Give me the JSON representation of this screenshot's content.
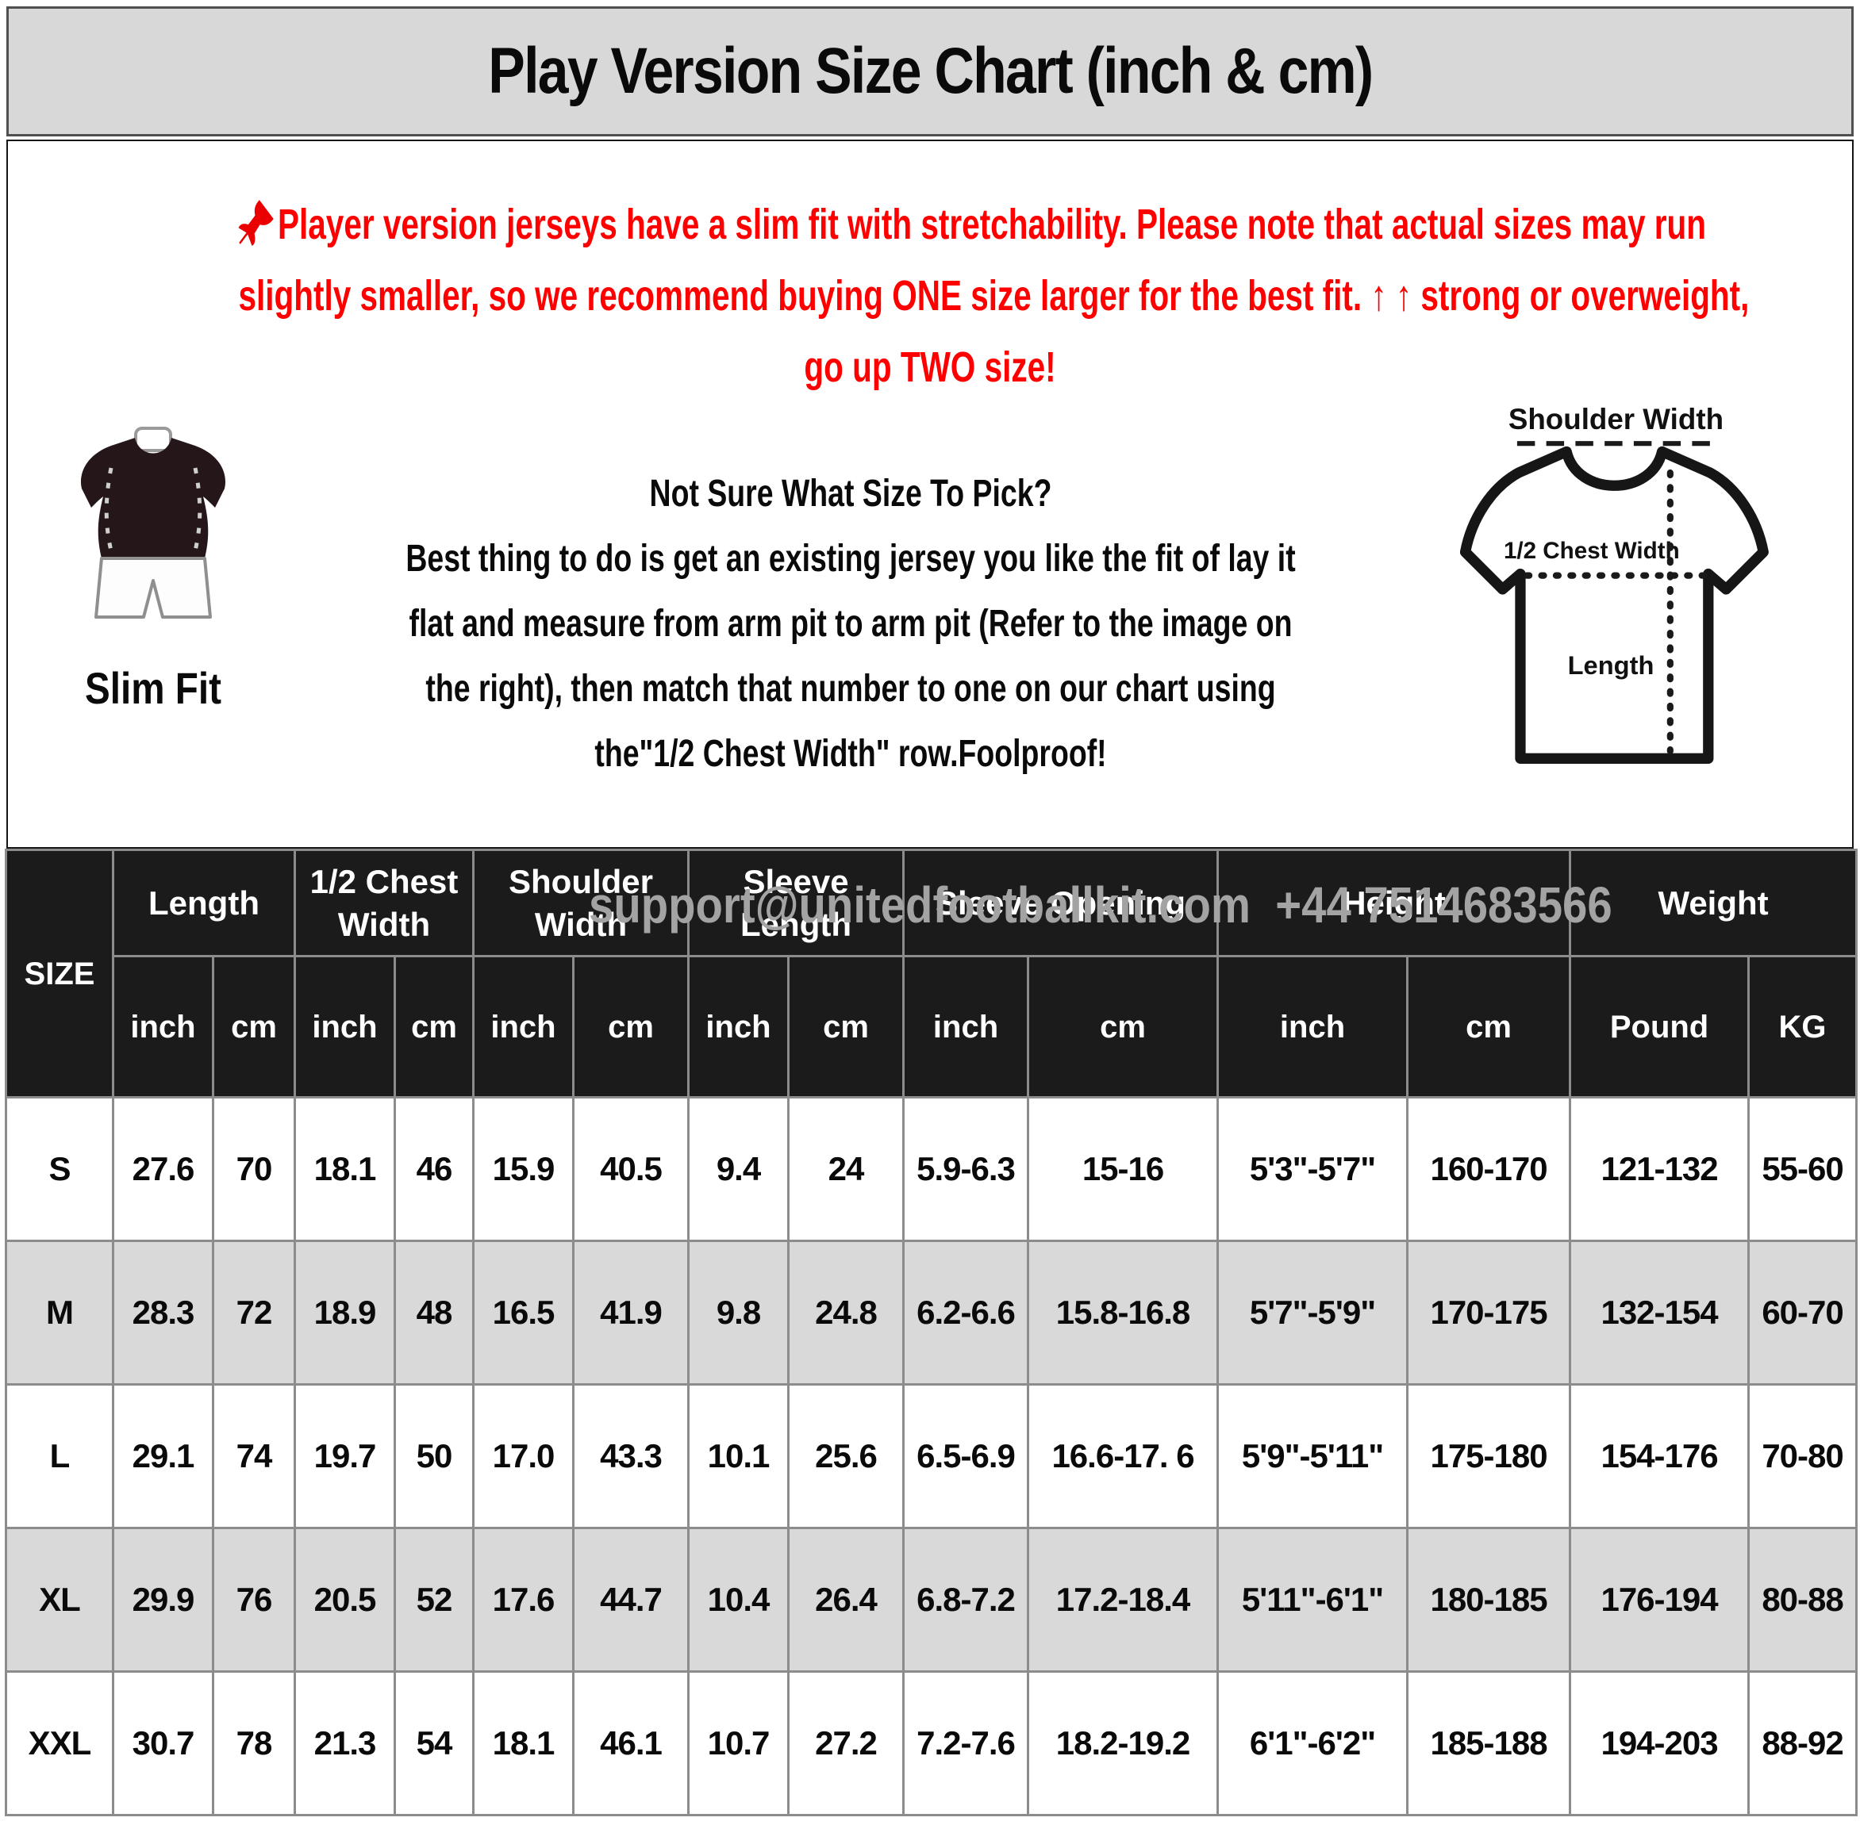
{
  "title": "Play Version Size Chart (inch & cm)",
  "notice": {
    "text": "Player version jerseys have a slim fit with stretchability. Please note that actual sizes may run\nslightly smaller, so we recommend buying ONE size larger for the best fit. ↑ ↑ strong or overweight,\ngo up TWO size!",
    "color": "#fe0000"
  },
  "fit_figure": {
    "caption": "Slim Fit"
  },
  "size_help": {
    "heading": "Not Sure What Size To Pick?",
    "body": "Best thing to do is get an existing jersey you like the fit of lay it\nflat and measure from arm pit to arm pit (Refer to the image on\nthe right), then match that number to one on our chart using\nthe\"1/2 Chest Width\" row.Foolproof!"
  },
  "diagram": {
    "shoulder_label": "Shoulder Width",
    "chest_label": "1/2 Chest Width",
    "length_label": "Length"
  },
  "watermark": "support@unitedfootballkit.com  +44 7514683566",
  "table": {
    "size_label": "SIZE",
    "groups": [
      {
        "label": "Length",
        "units": [
          "inch",
          "cm"
        ]
      },
      {
        "label": "1/2 Chest Width",
        "units": [
          "inch",
          "cm"
        ]
      },
      {
        "label": "Shoulder Width",
        "units": [
          "inch",
          "cm"
        ]
      },
      {
        "label": "Sleeve Length",
        "units": [
          "inch",
          "cm"
        ]
      },
      {
        "label": "Sleeve Opening",
        "units": [
          "inch",
          "cm"
        ]
      },
      {
        "label": "Height",
        "units": [
          "inch",
          "cm"
        ]
      },
      {
        "label": "Weight",
        "units": [
          "Pound",
          "KG"
        ]
      }
    ],
    "rows": [
      {
        "size": "S",
        "values": [
          "27.6",
          "70",
          "18.1",
          "46",
          "15.9",
          "40.5",
          "9.4",
          "24",
          "5.9-6.3",
          "15-16",
          "5'3\"-5'7\"",
          "160-170",
          "121-132",
          "55-60"
        ]
      },
      {
        "size": "M",
        "values": [
          "28.3",
          "72",
          "18.9",
          "48",
          "16.5",
          "41.9",
          "9.8",
          "24.8",
          "6.2-6.6",
          "15.8-16.8",
          "5'7\"-5'9\"",
          "170-175",
          "132-154",
          "60-70"
        ]
      },
      {
        "size": "L",
        "values": [
          "29.1",
          "74",
          "19.7",
          "50",
          "17.0",
          "43.3",
          "10.1",
          "25.6",
          "6.5-6.9",
          "16.6-17. 6",
          "5'9\"-5'11\"",
          "175-180",
          "154-176",
          "70-80"
        ]
      },
      {
        "size": "XL",
        "values": [
          "29.9",
          "76",
          "20.5",
          "52",
          "17.6",
          "44.7",
          "10.4",
          "26.4",
          "6.8-7.2",
          "17.2-18.4",
          "5'11\"-6'1\"",
          "180-185",
          "176-194",
          "80-88"
        ]
      },
      {
        "size": "XXL",
        "values": [
          "30.7",
          "78",
          "21.3",
          "54",
          "18.1",
          "46.1",
          "10.7",
          "27.2",
          "7.2-7.6",
          "18.2-19.2",
          "6'1\"-6'2\"",
          "185-188",
          "194-203",
          "88-92"
        ]
      }
    ],
    "colors": {
      "header_bg": "#1b1b1b",
      "grid": "#8c8c8c",
      "alt_row": "#d9d9d9",
      "title_band_bg": "#d8d8d8"
    }
  }
}
